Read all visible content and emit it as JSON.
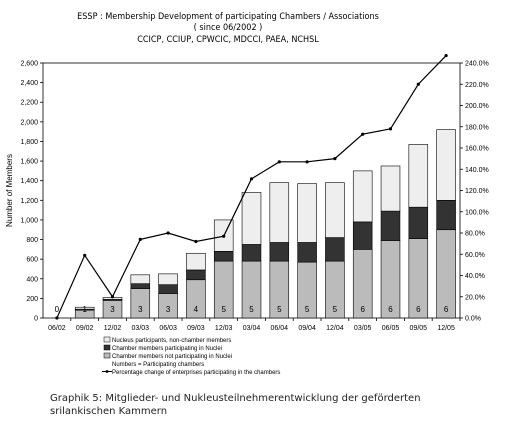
{
  "chart_data": {
    "type": "bar",
    "stacked": true,
    "title_lines": [
      "ESSP : Membership Development of participating Chambers / Associations",
      "( since 06/2002 )",
      "CCICP, CCIUP, CPWCIC, MDCCI, PAEA, NCHSL"
    ],
    "ylabel": "Number of Members",
    "ylim": [
      0,
      2600
    ],
    "yticks": [
      0,
      200,
      400,
      600,
      800,
      1000,
      1200,
      1400,
      1600,
      1800,
      2000,
      2200,
      2400,
      2600
    ],
    "y2lim": [
      0,
      240
    ],
    "y2ticks": [
      "0.0%",
      "20.0%",
      "40.0%",
      "60.0%",
      "80.0%",
      "100.0%",
      "120.0%",
      "140.0%",
      "160.0%",
      "180.0%",
      "200.0%",
      "220.0%",
      "240.0%"
    ],
    "categories": [
      "06/02",
      "09/02",
      "12/02",
      "03/03",
      "06/03",
      "09/03",
      "12/03",
      "03/04",
      "06/04",
      "09/04",
      "12/04",
      "03/05",
      "06/05",
      "09/05",
      "12/05"
    ],
    "series": [
      {
        "name": "Nucleus participants, non-chamber members",
        "color": "#eeeeee",
        "values": [
          0,
          20,
          20,
          90,
          110,
          170,
          320,
          530,
          610,
          600,
          560,
          520,
          460,
          640,
          720
        ]
      },
      {
        "name": "Chamber members participating in Nuclei",
        "color": "#333333",
        "values": [
          0,
          10,
          10,
          50,
          90,
          100,
          100,
          170,
          190,
          200,
          240,
          280,
          300,
          320,
          300
        ]
      },
      {
        "name": "Chamber members not participating in Nuclei",
        "color": "#bbbbbb",
        "values": [
          0,
          80,
          180,
          300,
          250,
          390,
          580,
          580,
          580,
          570,
          580,
          700,
          790,
          810,
          900
        ]
      }
    ],
    "bar_labels": [
      "0",
      "1",
      "3",
      "3",
      "3",
      "4",
      "5",
      "5",
      "5",
      "5",
      "5",
      "6",
      "6",
      "6",
      "6"
    ],
    "bar_labels_legend": "Numbers = Participating chambers",
    "line": {
      "name": "Percentage change of enterprises participating in the chambers",
      "axis": "right",
      "values": [
        0,
        59,
        20,
        74,
        80,
        72,
        77,
        131,
        147,
        147,
        150,
        173,
        178,
        220,
        247
      ]
    },
    "legend_position": "bottom"
  },
  "caption": "Graphik 5: Mitglieder- und Nukleusteilnehmerentwicklung der geförderten srilankischen Kammern"
}
